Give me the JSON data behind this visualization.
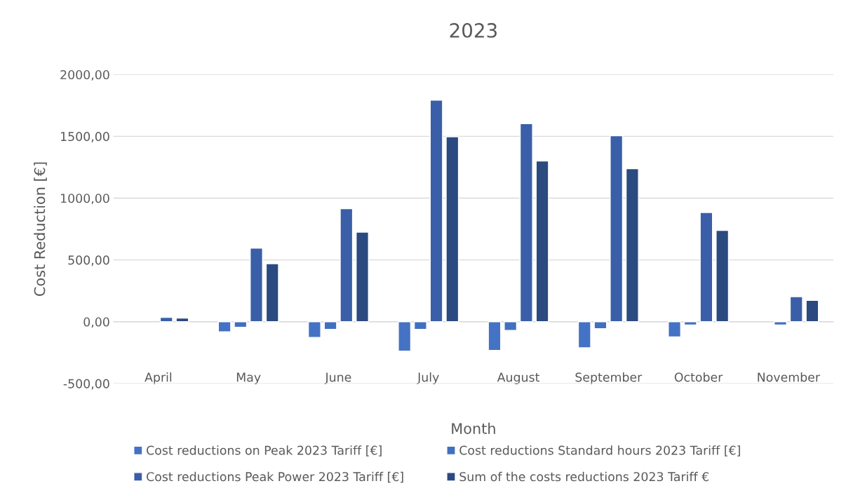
{
  "chart_data": {
    "type": "bar",
    "title": "2023",
    "xlabel": "Month",
    "ylabel": "Cost Reduction [€]",
    "categories": [
      "April",
      "May",
      "June",
      "July",
      "August",
      "September",
      "October",
      "November"
    ],
    "series": [
      {
        "name": "Cost reductions on Peak 2023 Tariff [€]",
        "color": "#4472c4",
        "values": [
          null,
          -82,
          -127,
          -238,
          -232,
          -211,
          -123,
          null
        ]
      },
      {
        "name": "Cost reductions Standard hours 2023 Tariff [€]",
        "color": "#4270c0",
        "values": [
          null,
          -45,
          -62,
          -62,
          -70,
          -57,
          -27,
          -27
        ]
      },
      {
        "name": "Cost reductions Peak Power 2023 Tariff [€]",
        "color": "#3a5fa8",
        "values": [
          35,
          596,
          914,
          1793,
          1602,
          1504,
          883,
          203
        ]
      },
      {
        "name": "Sum of the costs reductions 2023 Tariff €",
        "color": "#2a4a80",
        "values": [
          29,
          469,
          725,
          1496,
          1301,
          1238,
          738,
          172
        ]
      }
    ],
    "ylim": [
      -500,
      2000
    ],
    "yticks": [
      {
        "value": -500,
        "label": "-500,00"
      },
      {
        "value": 0,
        "label": "0,00"
      },
      {
        "value": 500,
        "label": "500,00"
      },
      {
        "value": 1000,
        "label": "1000,00"
      },
      {
        "value": 1500,
        "label": "1500,00"
      },
      {
        "value": 2000,
        "label": "2000,00"
      }
    ],
    "grid": "y",
    "legend": "bottom"
  }
}
